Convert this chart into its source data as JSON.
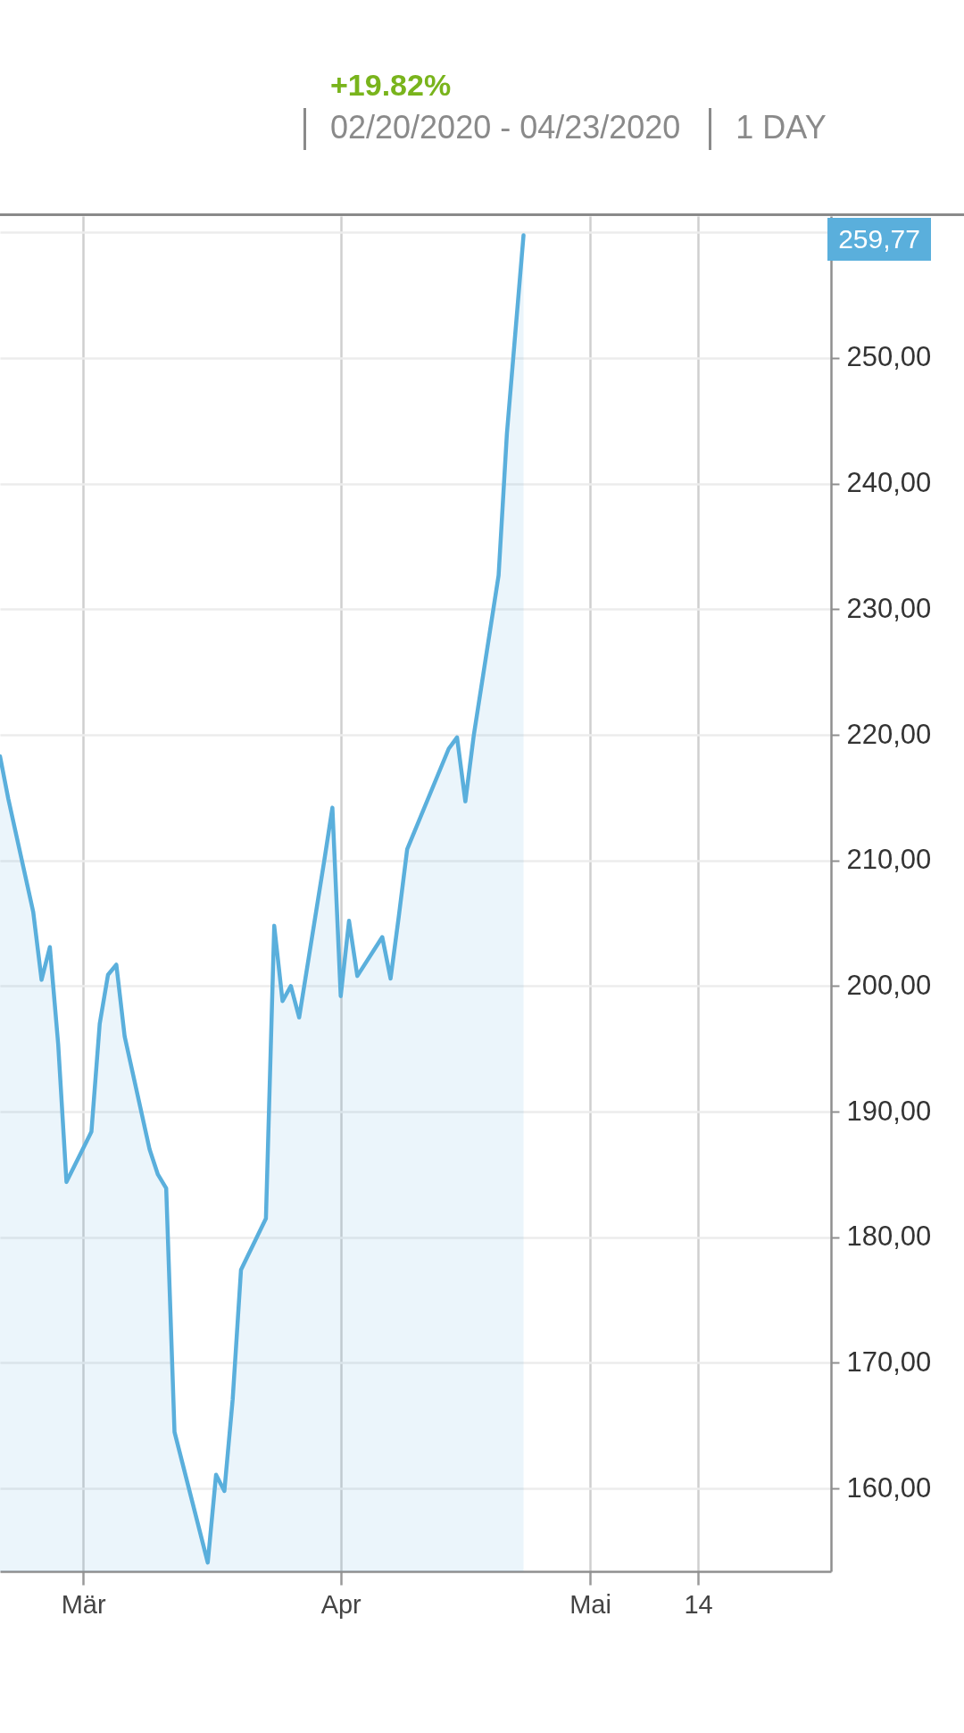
{
  "chart_data": {
    "type": "area",
    "title": "+19.82%",
    "subtitle": "02/20/2020 - 04/23/2020",
    "annotations": [
      "1 DAY",
      "259,77"
    ],
    "x": [
      "2020-02-20",
      "2020-02-21",
      "2020-02-24",
      "2020-02-25",
      "2020-02-26",
      "2020-02-27",
      "2020-02-28",
      "2020-03-02",
      "2020-03-03",
      "2020-03-04",
      "2020-03-05",
      "2020-03-06",
      "2020-03-09",
      "2020-03-10",
      "2020-03-11",
      "2020-03-12",
      "2020-03-13",
      "2020-03-16",
      "2020-03-17",
      "2020-03-18",
      "2020-03-19",
      "2020-03-20",
      "2020-03-23",
      "2020-03-24",
      "2020-03-25",
      "2020-03-26",
      "2020-03-27",
      "2020-03-30",
      "2020-03-31",
      "2020-04-01",
      "2020-04-02",
      "2020-04-03",
      "2020-04-06",
      "2020-04-07",
      "2020-04-08",
      "2020-04-09",
      "2020-04-14",
      "2020-04-15",
      "2020-04-16",
      "2020-04-17",
      "2020-04-20",
      "2020-04-21",
      "2020-04-22",
      "2020-04-23"
    ],
    "series": [
      {
        "color": "#5aafdc",
        "values": [
          218.3,
          214.9,
          205.9,
          200.5,
          203.1,
          195.4,
          184.4,
          188.4,
          197.0,
          200.9,
          201.7,
          196.0,
          187.0,
          185.0,
          183.9,
          164.5,
          161.9,
          154.1,
          161.1,
          159.8,
          167.1,
          177.4,
          181.5,
          204.8,
          198.8,
          200.0,
          197.5,
          209.9,
          214.2,
          199.2,
          205.2,
          200.8,
          203.9,
          200.6,
          205.6,
          210.9,
          218.9,
          219.8,
          214.7,
          219.9,
          232.7,
          244.0,
          251.9,
          259.77
        ]
      }
    ],
    "xlim": [
      "2020-02-20",
      "2020-05-30"
    ],
    "xticks": [
      {
        "value": "2020-03-01",
        "label": "Mär"
      },
      {
        "value": "2020-04-01",
        "label": "Apr"
      },
      {
        "value": "2020-05-01",
        "label": "Mai"
      },
      {
        "value": "2020-05-14",
        "label": "14"
      }
    ],
    "ylim": [
      153.4,
      261.3
    ],
    "yticks": [
      {
        "value": 160,
        "label": "160,00"
      },
      {
        "value": 170,
        "label": "170,00"
      },
      {
        "value": 180,
        "label": "180,00"
      },
      {
        "value": 190,
        "label": "190,00"
      },
      {
        "value": 200,
        "label": "200,00"
      },
      {
        "value": 210,
        "label": "210,00"
      },
      {
        "value": 220,
        "label": "220,00"
      },
      {
        "value": 230,
        "label": "230,00"
      },
      {
        "value": 240,
        "label": "240,00"
      },
      {
        "value": 250,
        "label": "250,00"
      },
      {
        "value": 260,
        "label": null
      }
    ],
    "grid": true
  }
}
